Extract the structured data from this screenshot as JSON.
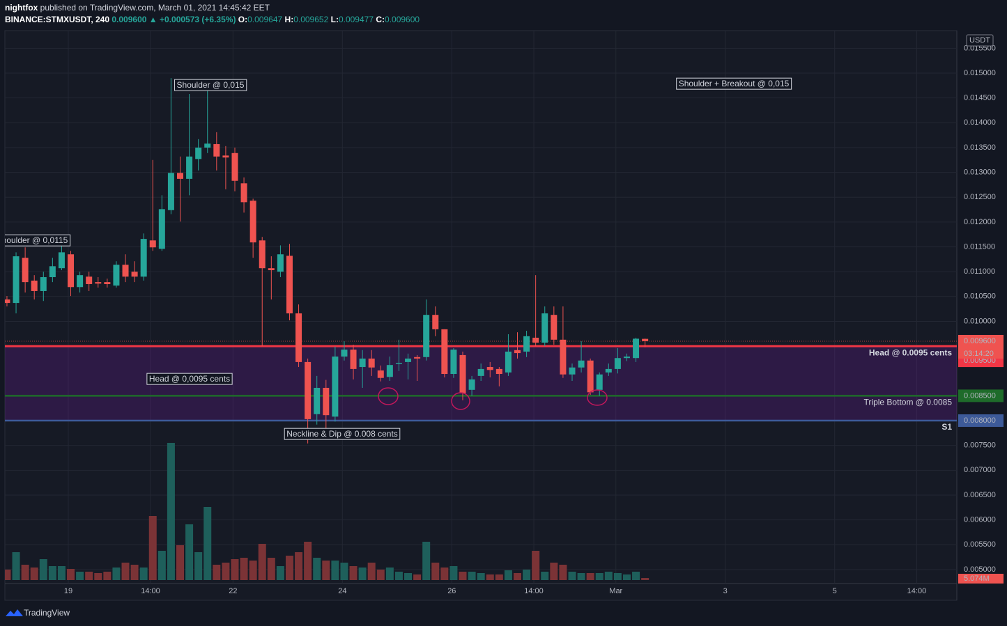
{
  "header": {
    "user": "nightfox",
    "published": "published on TradingView.com, March 01, 2021 14:45:42 EET",
    "symbol": "BINANCE:STMXUSDT, 240",
    "price": "0.009600",
    "arrow": "▲",
    "change": "+0.000573 (+6.35%)",
    "o_key": "O:",
    "o": "0.009647",
    "h_key": "H:",
    "h": "0.009652",
    "l_key": "L:",
    "l": "0.009477",
    "c_key": "C:",
    "c": "0.009600",
    "currency": "USDT"
  },
  "footer": {
    "brand": "TradingView"
  },
  "annotations": [
    "Shoulder @ 0,015",
    "Shoulder + Breakout @ 0,015",
    "houlder @ 0,0115",
    "Head @ 0,0095 cents",
    "Neckline & Dip @ 0.008 cents"
  ],
  "chart_data": {
    "type": "candlestick",
    "up_color": "#26a69a",
    "down_color": "#ef5350",
    "grid": true,
    "ylim": [
      0.004788,
      0.015842
    ],
    "yticks": [
      {
        "value": 0.005,
        "label": "0.005000"
      },
      {
        "value": 0.0055,
        "label": "0.005500"
      },
      {
        "value": 0.006,
        "label": "0.006000"
      },
      {
        "value": 0.0065,
        "label": "0.006500"
      },
      {
        "value": 0.007,
        "label": "0.007000"
      },
      {
        "value": 0.0075,
        "label": "0.007500"
      },
      {
        "value": 0.01,
        "label": "0.010000"
      },
      {
        "value": 0.0105,
        "label": "0.010500"
      },
      {
        "value": 0.011,
        "label": "0.011000"
      },
      {
        "value": 0.0115,
        "label": "0.011500"
      },
      {
        "value": 0.012,
        "label": "0.012000"
      },
      {
        "value": 0.0125,
        "label": "0.012500"
      },
      {
        "value": 0.013,
        "label": "0.013000"
      },
      {
        "value": 0.0135,
        "label": "0.013500"
      },
      {
        "value": 0.014,
        "label": "0.014000"
      },
      {
        "value": 0.0145,
        "label": "0.014500"
      },
      {
        "value": 0.015,
        "label": "0.015000"
      },
      {
        "value": 0.0155,
        "label": "0.015500"
      }
    ],
    "xlim": [
      -0.15,
      104.2
    ],
    "xticks": [
      {
        "value": 6.73,
        "label": "19"
      },
      {
        "value": 15.75,
        "label": "14:00"
      },
      {
        "value": 24.8,
        "label": "22"
      },
      {
        "value": 36.8,
        "label": "24"
      },
      {
        "value": 48.8,
        "label": "26"
      },
      {
        "value": 57.8,
        "label": "14:00"
      },
      {
        "value": 66.8,
        "label": "Mar"
      },
      {
        "value": 78.8,
        "label": "3"
      },
      {
        "value": 90.8,
        "label": "5"
      },
      {
        "value": 99.8,
        "label": "14:00"
      }
    ],
    "open": [
      0.01044,
      0.01037,
      0.01128,
      0.01082,
      0.01061,
      0.01089,
      0.01107,
      0.01135,
      0.01069,
      0.0109,
      0.01079,
      0.01079,
      0.01072,
      0.01114,
      0.011,
      0.0109,
      0.01163,
      0.01146,
      0.01224,
      0.01299,
      0.01287,
      0.01327,
      0.0135,
      0.01357,
      0.01334,
      0.01339,
      0.01278,
      0.01243,
      0.01163,
      0.01107,
      0.011,
      0.01132,
      0.01016,
      0.00918,
      0.00813,
      0.00866,
      0.00808,
      0.00929,
      0.00943,
      0.00908,
      0.00925,
      0.00901,
      0.00888,
      0.00914,
      0.00918,
      0.00928,
      0.00928,
      0.01013,
      0.00984,
      0.00894,
      0.00932,
      0.00862,
      0.0089,
      0.00908,
      0.00904,
      0.00897,
      0.00942,
      0.00939,
      0.00967,
      0.00957,
      0.01013,
      0.00963,
      0.00893,
      0.00907,
      0.00921,
      0.00862,
      0.00897,
      0.00904,
      0.00926,
      0.00926,
      0.009647
    ],
    "high": [
      0.01051,
      0.01139,
      0.01149,
      0.01093,
      0.011,
      0.01128,
      0.01156,
      0.01142,
      0.011,
      0.011,
      0.01089,
      0.01086,
      0.01121,
      0.01135,
      0.01121,
      0.01177,
      0.01325,
      0.01254,
      0.0149,
      0.01332,
      0.01458,
      0.01367,
      0.01486,
      0.01381,
      0.01353,
      0.0135,
      0.0129,
      0.01247,
      0.0117,
      0.01131,
      0.01153,
      0.01156,
      0.01034,
      0.00925,
      0.0089,
      0.00882,
      0.00949,
      0.0096,
      0.00953,
      0.00942,
      0.00942,
      0.00911,
      0.00929,
      0.00963,
      0.00935,
      0.00932,
      0.01044,
      0.0103,
      0.00984,
      0.00946,
      0.00939,
      0.0089,
      0.00915,
      0.00918,
      0.00908,
      0.00974,
      0.00978,
      0.00981,
      0.01093,
      0.0103,
      0.0103,
      0.0103,
      0.00915,
      0.0096,
      0.00925,
      0.00897,
      0.00915,
      0.00946,
      0.00935,
      0.00967,
      0.009652
    ],
    "low": [
      0.0103,
      0.01016,
      0.01058,
      0.01044,
      0.01041,
      0.01079,
      0.01103,
      0.01051,
      0.01058,
      0.01061,
      0.01068,
      0.01068,
      0.01068,
      0.01079,
      0.01079,
      0.01082,
      0.01142,
      0.01142,
      0.01216,
      0.01201,
      0.01254,
      0.01304,
      0.01339,
      0.01304,
      0.01266,
      0.01262,
      0.01219,
      0.01128,
      0.0095,
      0.01044,
      0.01089,
      0.01002,
      0.00908,
      0.00754,
      0.00792,
      0.00764,
      0.00798,
      0.00921,
      0.00883,
      0.00866,
      0.0089,
      0.00879,
      0.0088,
      0.009,
      0.00883,
      0.0088,
      0.00921,
      0.0097,
      0.00887,
      0.00886,
      0.00841,
      0.0085,
      0.0088,
      0.00887,
      0.00869,
      0.0089,
      0.00925,
      0.00928,
      0.0095,
      0.0095,
      0.00953,
      0.00886,
      0.0088,
      0.00897,
      0.00852,
      0.0085,
      0.0089,
      0.00895,
      0.0092,
      0.00918,
      0.009477
    ],
    "close": [
      0.01037,
      0.01131,
      0.01079,
      0.01061,
      0.01089,
      0.01111,
      0.01139,
      0.01069,
      0.01093,
      0.01075,
      0.01076,
      0.01075,
      0.01114,
      0.0109,
      0.0109,
      0.01166,
      0.01149,
      0.01226,
      0.01299,
      0.01287,
      0.01332,
      0.0135,
      0.01358,
      0.01332,
      0.0133,
      0.01283,
      0.0124,
      0.01159,
      0.01107,
      0.01103,
      0.01135,
      0.01016,
      0.00918,
      0.00803,
      0.00866,
      0.00811,
      0.00929,
      0.00943,
      0.00904,
      0.00925,
      0.00907,
      0.00886,
      0.00912,
      0.00916,
      0.00925,
      0.00925,
      0.01013,
      0.00984,
      0.00894,
      0.00943,
      0.00855,
      0.00883,
      0.00904,
      0.00902,
      0.00894,
      0.00939,
      0.00936,
      0.0097,
      0.00957,
      0.01016,
      0.00963,
      0.00893,
      0.00907,
      0.00921,
      0.00857,
      0.00893,
      0.00904,
      0.00926,
      0.00929,
      0.00965,
      0.0096
    ],
    "volume": {
      "values": [
        25.5,
        68,
        37.4,
        30.6,
        51,
        34,
        34,
        27.2,
        20.4,
        20.4,
        17,
        20.4,
        30.6,
        42.5,
        37.4,
        30.6,
        156.4,
        71.4,
        334.9,
        85,
        136,
        68,
        178.5,
        37.4,
        42.5,
        51,
        54.4,
        47.6,
        88.4,
        54.4,
        34,
        59.5,
        68,
        93.5,
        54.4,
        47.6,
        47.6,
        42.5,
        34,
        30.6,
        42.5,
        25.5,
        30.6,
        20.4,
        17,
        13.6,
        93.5,
        42.5,
        30.6,
        34,
        20.4,
        20.4,
        17,
        13.6,
        13.6,
        23.8,
        17,
        25.5,
        71.4,
        20.4,
        42.5,
        37.4,
        20.4,
        17,
        17,
        17,
        20.4,
        17,
        13.6,
        20.4,
        5.074
      ],
      "value_labels": [
        null,
        null,
        null,
        null,
        null,
        null,
        null,
        null,
        null,
        null,
        null,
        null,
        null,
        null,
        null,
        null,
        null,
        null,
        null,
        null,
        null,
        null,
        null,
        null,
        null,
        null,
        null,
        null,
        null,
        null,
        null,
        null,
        null,
        null,
        null,
        null,
        null,
        null,
        null,
        null,
        null,
        null,
        null,
        null,
        null,
        null,
        null,
        null,
        null,
        null,
        null,
        null,
        null,
        null,
        null,
        null,
        null,
        null,
        null,
        null,
        null,
        null,
        null,
        null,
        null,
        null,
        null,
        null,
        null,
        null,
        "5.074M"
      ]
    },
    "last_price": {
      "value": 0.0096,
      "label": "0.009600",
      "countdown": "03:14:20"
    },
    "levels": [
      {
        "name": "Head @ 0.0095 cents",
        "value": 0.0095,
        "label": "0.009500",
        "color": "#f23645"
      },
      {
        "name": "Triple Bottom @ 0.0085",
        "value": 0.0085,
        "label": "0.008500",
        "color": "#1e6b2a"
      },
      {
        "name": "S1",
        "value": 0.008,
        "label": "0.008000",
        "color": "#3d5a99"
      }
    ]
  }
}
